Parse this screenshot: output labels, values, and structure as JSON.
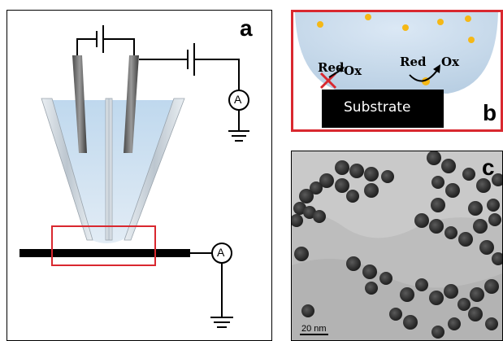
{
  "panel_a": {
    "letter": "a",
    "ammeter_top": "A",
    "ammeter_bottom": "A"
  },
  "panel_b": {
    "letter": "b",
    "substrate_label": "Substrate",
    "reaction_blocked": {
      "red": "Red",
      "ox": "Ox"
    },
    "reaction_allowed": {
      "red": "Red",
      "ox": "Ox"
    }
  },
  "panel_c": {
    "letter": "c",
    "scale_label": "20 nm"
  },
  "colors": {
    "highlight_red": "#d9282f",
    "droplet_blue": "#c9dff0",
    "particle_yellow": "#f5b816",
    "substrate_black": "#000000"
  }
}
